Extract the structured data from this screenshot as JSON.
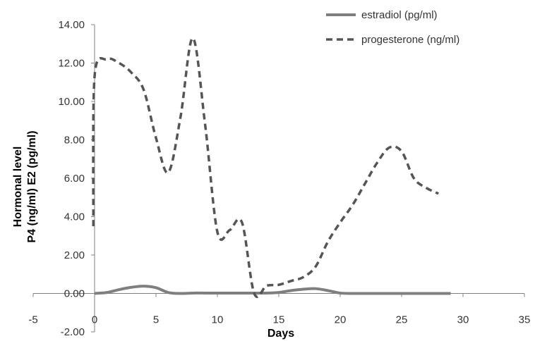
{
  "chart_data": {
    "type": "line",
    "title": "",
    "xlabel": "Days",
    "ylabel": [
      "Hormonal level",
      "P4 (ng/ml) E2 (pg/ml)"
    ],
    "xlim": [
      -5,
      35
    ],
    "ylim": [
      -2,
      14
    ],
    "x_ticks": [
      -5,
      0,
      5,
      10,
      15,
      20,
      25,
      30,
      35
    ],
    "y_ticks": [
      -2,
      0,
      2,
      4,
      6,
      8,
      10,
      12,
      14
    ],
    "x_tick_labels": [
      "-5",
      "0",
      "5",
      "10",
      "15",
      "20",
      "25",
      "30",
      "35"
    ],
    "y_tick_labels": [
      "-2.00",
      "0.00",
      "2.00",
      "4.00",
      "6.00",
      "8.00",
      "10.00",
      "12.00",
      "14.00"
    ],
    "grid": false,
    "legend_position": "top-right",
    "series": [
      {
        "name": "estradiol (pg/ml)",
        "color": "#7f7f7f",
        "dash": "solid",
        "x": [
          0,
          1,
          2,
          3,
          4,
          5,
          6,
          7,
          8,
          9,
          10,
          11,
          12,
          13,
          14,
          15,
          16,
          17,
          18,
          19,
          20,
          21,
          22,
          23,
          24,
          25,
          26,
          27,
          28,
          29
        ],
        "values": [
          0.0,
          0.05,
          0.2,
          0.32,
          0.38,
          0.3,
          0.05,
          0.0,
          0.02,
          0.02,
          0.02,
          0.02,
          0.02,
          0.02,
          0.02,
          0.05,
          0.15,
          0.22,
          0.25,
          0.15,
          0.02,
          0.0,
          0.0,
          0.0,
          0.0,
          0.0,
          0.0,
          0.0,
          0.0,
          0.0
        ]
      },
      {
        "name": "progesterone (ng/ml)",
        "color": "#555555",
        "dash": "dashed",
        "x": [
          -0.1,
          0,
          1,
          2,
          3,
          4,
          5,
          6,
          7,
          8,
          9,
          10,
          11,
          12,
          13,
          14,
          15,
          16,
          17,
          18,
          19,
          20,
          21,
          22,
          23,
          24,
          25,
          26,
          27,
          28,
          29
        ],
        "values": [
          3.5,
          11.3,
          12.2,
          12.0,
          11.5,
          10.6,
          8.1,
          6.3,
          9.2,
          13.3,
          8.8,
          3.2,
          3.3,
          3.7,
          0.0,
          0.4,
          0.45,
          0.65,
          0.85,
          1.4,
          2.7,
          3.7,
          4.6,
          5.7,
          6.8,
          7.6,
          7.4,
          6.0,
          5.5,
          5.2,
          null
        ]
      }
    ]
  }
}
